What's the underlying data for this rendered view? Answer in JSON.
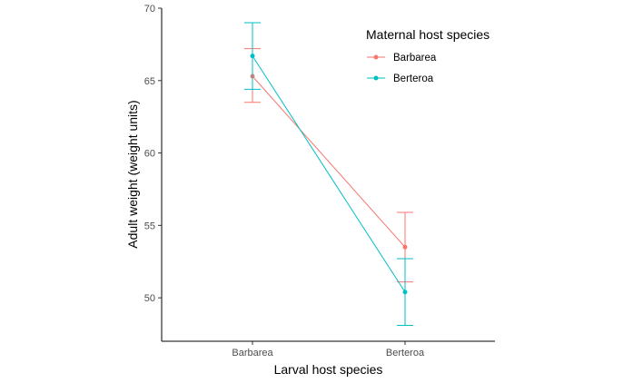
{
  "chart_data": {
    "type": "line",
    "xlabel": "Larval host species",
    "ylabel": "Adult weight (weight units)",
    "categories": [
      "Barbarea",
      "Berteroa"
    ],
    "ylim": [
      47,
      70
    ],
    "yticks": [
      50,
      55,
      60,
      65,
      70
    ],
    "grid": false,
    "legend": {
      "title": "Maternal host species",
      "position": "top-right"
    },
    "series": [
      {
        "name": "Barbarea",
        "color": "#F8766D",
        "values": [
          65.3,
          53.5
        ],
        "error_low": [
          63.5,
          51.1
        ],
        "error_high": [
          67.2,
          55.9
        ]
      },
      {
        "name": "Berteroa",
        "color": "#00BFC4",
        "values": [
          66.7,
          50.4
        ],
        "error_low": [
          64.4,
          48.1
        ],
        "error_high": [
          69.0,
          52.7
        ]
      }
    ]
  }
}
